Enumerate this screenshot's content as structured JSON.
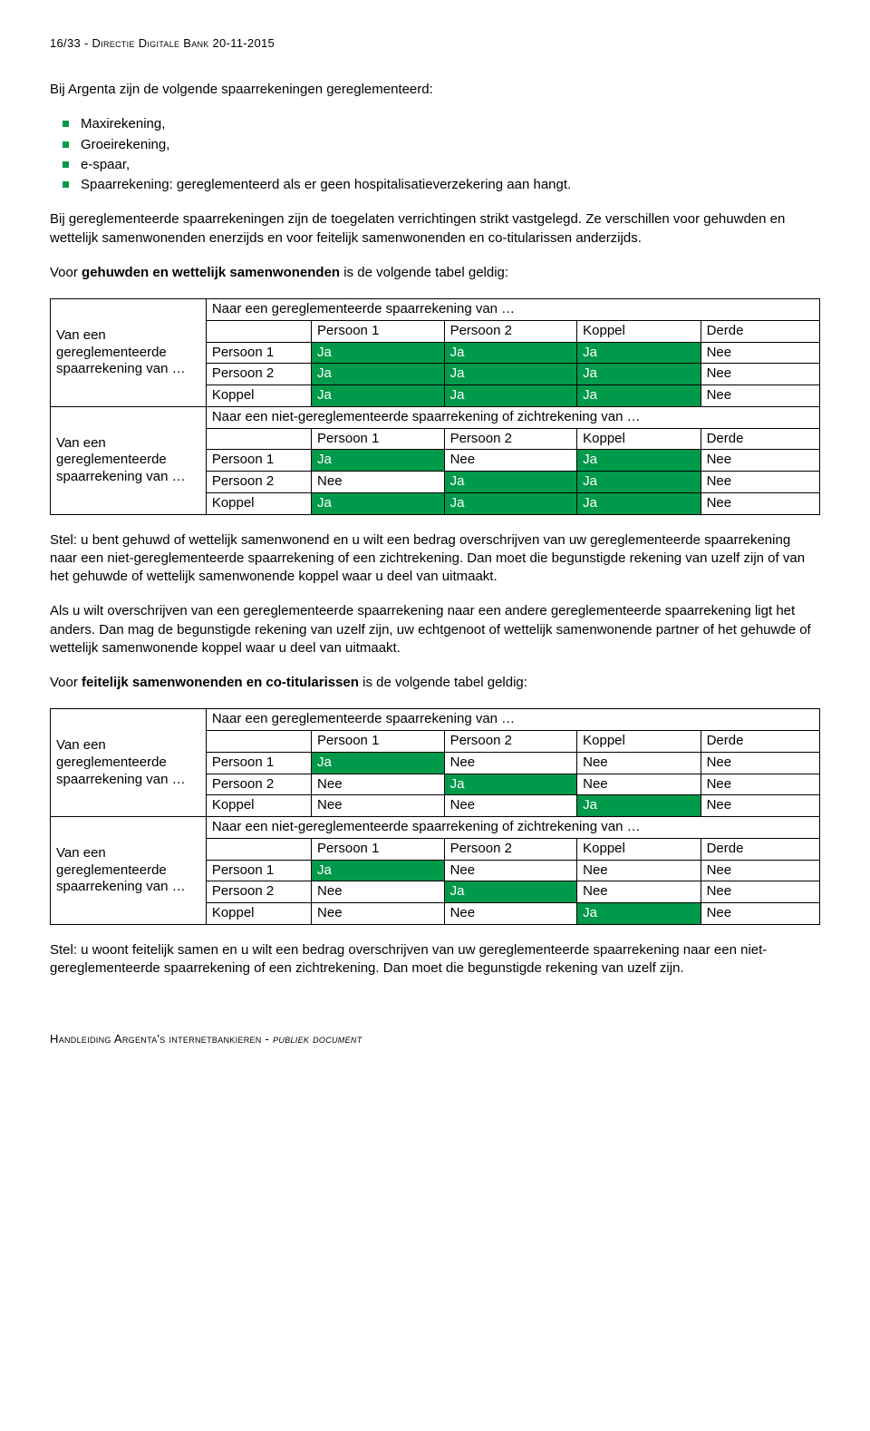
{
  "header": "16/33 - Directie Digitale Bank 20-11-2015",
  "intro_para": "Bij Argenta zijn de volgende spaarrekeningen gereglementeerd:",
  "bullets": [
    "Maxirekening,",
    "Groeirekening,",
    "e-spaar,",
    "Spaarrekening: gereglementeerd als er geen hospitalisatieverzekering aan hangt."
  ],
  "para2": "Bij gereglementeerde spaarrekeningen zijn de toegelaten verrichtingen strikt vastgelegd. Ze verschillen voor gehuwden en wettelijk samenwonenden enerzijds en voor feitelijk samenwonenden en co-titularissen anderzijds.",
  "para3_pre": "Voor ",
  "para3_bold": "gehuwden en wettelijk samenwonenden",
  "para3_post": " is de volgende tabel geldig:",
  "table1": {
    "colors": {
      "ja_bg": "#009a4a",
      "ja_fg": "#ffffff"
    },
    "row_label": "Van een gereglementeerde spaarrekening van …",
    "section1_title": "Naar een gereglementeerde spaarrekening van …",
    "section2_title": "Naar een niet-gereglementeerde spaarrekening of zichtrekening van …",
    "col_headers": [
      "Persoon 1",
      "Persoon 2",
      "Koppel",
      "Derde"
    ],
    "rows1": [
      {
        "label": "Persoon 1",
        "cells": [
          "Ja",
          "Ja",
          "Ja",
          "Nee"
        ]
      },
      {
        "label": "Persoon 2",
        "cells": [
          "Ja",
          "Ja",
          "Ja",
          "Nee"
        ]
      },
      {
        "label": "Koppel",
        "cells": [
          "Ja",
          "Ja",
          "Ja",
          "Nee"
        ]
      }
    ],
    "rows2": [
      {
        "label": "Persoon 1",
        "cells": [
          "Ja",
          "Nee",
          "Ja",
          "Nee"
        ]
      },
      {
        "label": "Persoon 2",
        "cells": [
          "Nee",
          "Ja",
          "Ja",
          "Nee"
        ]
      },
      {
        "label": "Koppel",
        "cells": [
          "Ja",
          "Ja",
          "Ja",
          "Nee"
        ]
      }
    ]
  },
  "para4": "Stel: u bent gehuwd of wettelijk samenwonend en u wilt een bedrag overschrijven van uw gereglementeerde spaarrekening naar een niet-gereglementeerde spaarrekening of een zichtrekening. Dan moet die begunstigde rekening van uzelf zijn of van het gehuwde of wettelijk samenwonende koppel waar u deel van uitmaakt.",
  "para5": "Als u wilt overschrijven van een gereglementeerde spaarrekening naar een andere gereglementeerde spaarrekening ligt het anders. Dan mag de begunstigde rekening van uzelf zijn, uw echtgenoot of wettelijk samenwonende partner of het gehuwde of wettelijk samenwonende koppel waar u deel van uitmaakt.",
  "para6_pre": "Voor ",
  "para6_bold": "feitelijk samenwonenden en co-titularissen",
  "para6_post": " is de volgende tabel geldig:",
  "table2": {
    "row_label": "Van een gereglementeerde spaarrekening van …",
    "section1_title": "Naar een gereglementeerde spaarrekening van …",
    "section2_title": "Naar een niet-gereglementeerde spaarrekening of zichtrekening van …",
    "col_headers": [
      "Persoon 1",
      "Persoon 2",
      "Koppel",
      "Derde"
    ],
    "rows1": [
      {
        "label": "Persoon 1",
        "cells": [
          "Ja",
          "Nee",
          "Nee",
          "Nee"
        ]
      },
      {
        "label": "Persoon 2",
        "cells": [
          "Nee",
          "Ja",
          "Nee",
          "Nee"
        ]
      },
      {
        "label": "Koppel",
        "cells": [
          "Nee",
          "Nee",
          "Ja",
          "Nee"
        ]
      }
    ],
    "rows2": [
      {
        "label": "Persoon 1",
        "cells": [
          "Ja",
          "Nee",
          "Nee",
          "Nee"
        ]
      },
      {
        "label": "Persoon 2",
        "cells": [
          "Nee",
          "Ja",
          "Nee",
          "Nee"
        ]
      },
      {
        "label": "Koppel",
        "cells": [
          "Nee",
          "Nee",
          "Ja",
          "Nee"
        ]
      }
    ]
  },
  "para7": "Stel: u woont feitelijk samen en u wilt een bedrag overschrijven van uw gereglementeerde spaarrekening naar een niet-gereglementeerde spaarrekening of een zichtrekening. Dan moet die begunstigde rekening van uzelf zijn.",
  "footer_plain": "Handleiding Argenta's internetbankieren - ",
  "footer_ital": "publiek document"
}
